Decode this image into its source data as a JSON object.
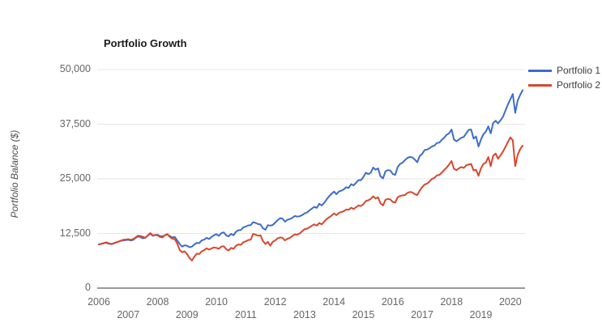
{
  "title": "Portfolio Growth",
  "y_axis": {
    "label": "Portfolio Balance ($)",
    "tick_labels": [
      "0",
      "12,500",
      "25,000",
      "37,500",
      "50,000"
    ]
  },
  "x_axis": {
    "row1_years": [
      2006,
      2008,
      2010,
      2012,
      2014,
      2016,
      2018,
      2020
    ],
    "row2_years": [
      2007,
      2009,
      2011,
      2013,
      2015,
      2017,
      2019
    ]
  },
  "legend": {
    "items": [
      {
        "label": "Portfolio 1",
        "color": "#3d6dc9"
      },
      {
        "label": "Portfolio 2",
        "color": "#d9462e"
      }
    ],
    "position": "top-right"
  },
  "colors": {
    "gridline": "#e6e6e6",
    "baseline": "#999999",
    "portfolio1": "#3d6dc9",
    "portfolio2": "#d9462e"
  },
  "chart_data": {
    "type": "line",
    "title": "Portfolio Growth",
    "xlabel": "",
    "ylabel": "Portfolio Balance ($)",
    "ylim": [
      0,
      50000
    ],
    "xlim": [
      2006,
      2020.5
    ],
    "y_ticks": [
      0,
      12500,
      25000,
      37500,
      50000
    ],
    "x_ticks": [
      2006,
      2007,
      2008,
      2009,
      2010,
      2011,
      2012,
      2013,
      2014,
      2015,
      2016,
      2017,
      2018,
      2019,
      2020
    ],
    "grid": "horizontal",
    "legend_position": "top-right",
    "x_start_year": 2006.0,
    "x_step_years": 0.083333,
    "frequency": "monthly",
    "series": [
      {
        "name": "Portfolio 1",
        "color": "#3d6dc9",
        "values": [
          10000,
          10120,
          10260,
          10380,
          10150,
          10060,
          10180,
          10420,
          10610,
          10810,
          10930,
          10980,
          11060,
          10890,
          11010,
          11480,
          11830,
          11640,
          11390,
          11560,
          12020,
          12450,
          11960,
          12180,
          12200,
          11900,
          11850,
          12100,
          12250,
          11900,
          11600,
          11700,
          10900,
          10100,
          9500,
          9800,
          9700,
          9350,
          9500,
          10000,
          10350,
          10300,
          10900,
          11100,
          11500,
          11250,
          11700,
          12100,
          12350,
          11950,
          12550,
          12750,
          12050,
          11850,
          12400,
          12100,
          12900,
          13250,
          13300,
          13900,
          14100,
          14350,
          14400,
          15100,
          14900,
          14650,
          14550,
          13700,
          13350,
          14400,
          14300,
          14450,
          15000,
          15550,
          16000,
          15900,
          15200,
          15650,
          15800,
          16100,
          16500,
          16350,
          16450,
          16700,
          17100,
          17300,
          17800,
          18200,
          18600,
          18350,
          19300,
          18900,
          19500,
          20300,
          21000,
          21600,
          22100,
          21500,
          22100,
          22300,
          22600,
          23100,
          22900,
          23800,
          23500,
          24100,
          24700,
          24700,
          25400,
          26400,
          26100,
          26400,
          27600,
          27100,
          27400,
          25600,
          25100,
          26700,
          27000,
          26900,
          26100,
          25900,
          27700,
          28400,
          28700,
          29300,
          29800,
          30000,
          29900,
          29400,
          28800,
          30200,
          30700,
          31600,
          31700,
          32000,
          32400,
          32600,
          33200,
          33300,
          33900,
          34400,
          35100,
          35400,
          36300,
          34000,
          33600,
          34000,
          34400,
          34600,
          35400,
          36200,
          36300,
          34200,
          34700,
          32400,
          34000,
          35200,
          35800,
          37000,
          35400,
          37800,
          38300,
          37700,
          38400,
          39200,
          40600,
          42000,
          43200,
          44400,
          40100,
          42900,
          44200,
          45300
        ]
      },
      {
        "name": "Portfolio 2",
        "color": "#d9462e",
        "values": [
          10000,
          10150,
          10300,
          10480,
          10250,
          10130,
          10240,
          10490,
          10640,
          10870,
          11050,
          11120,
          11200,
          11050,
          11230,
          11600,
          12000,
          11900,
          11750,
          11500,
          12100,
          12600,
          12050,
          12150,
          12050,
          11700,
          11600,
          12150,
          12350,
          11700,
          11300,
          11200,
          10200,
          8700,
          8200,
          8400,
          7800,
          6900,
          6300,
          7200,
          7900,
          7800,
          8400,
          8700,
          9100,
          8800,
          9100,
          9300,
          9200,
          9000,
          9500,
          9600,
          8900,
          8600,
          9200,
          9000,
          9700,
          10000,
          9900,
          10500,
          10700,
          11000,
          11100,
          12400,
          12200,
          12000,
          12100,
          10800,
          10100,
          10600,
          9700,
          10600,
          10900,
          11400,
          11600,
          11500,
          10900,
          11300,
          11500,
          11900,
          12300,
          12250,
          12500,
          13000,
          13500,
          13600,
          13900,
          14300,
          14600,
          14300,
          14900,
          14600,
          15200,
          15800,
          16200,
          16600,
          17100,
          16700,
          17200,
          17400,
          17600,
          18000,
          17900,
          18400,
          18100,
          18500,
          18900,
          18800,
          19200,
          19900,
          20100,
          20400,
          21000,
          20500,
          20800,
          19400,
          18900,
          20200,
          20400,
          20300,
          19700,
          19600,
          20800,
          21100,
          21200,
          21300,
          21800,
          22000,
          21900,
          21500,
          21300,
          22300,
          23100,
          23700,
          23900,
          24400,
          25000,
          25200,
          25800,
          25900,
          26400,
          27000,
          27600,
          28300,
          29100,
          27300,
          27000,
          27400,
          27700,
          27500,
          28100,
          28300,
          28400,
          26900,
          27100,
          25700,
          27400,
          28400,
          28700,
          30000,
          27900,
          30300,
          30800,
          29600,
          30400,
          31250,
          32300,
          33400,
          34500,
          33800,
          27900,
          30500,
          31800,
          32600
        ]
      }
    ]
  }
}
